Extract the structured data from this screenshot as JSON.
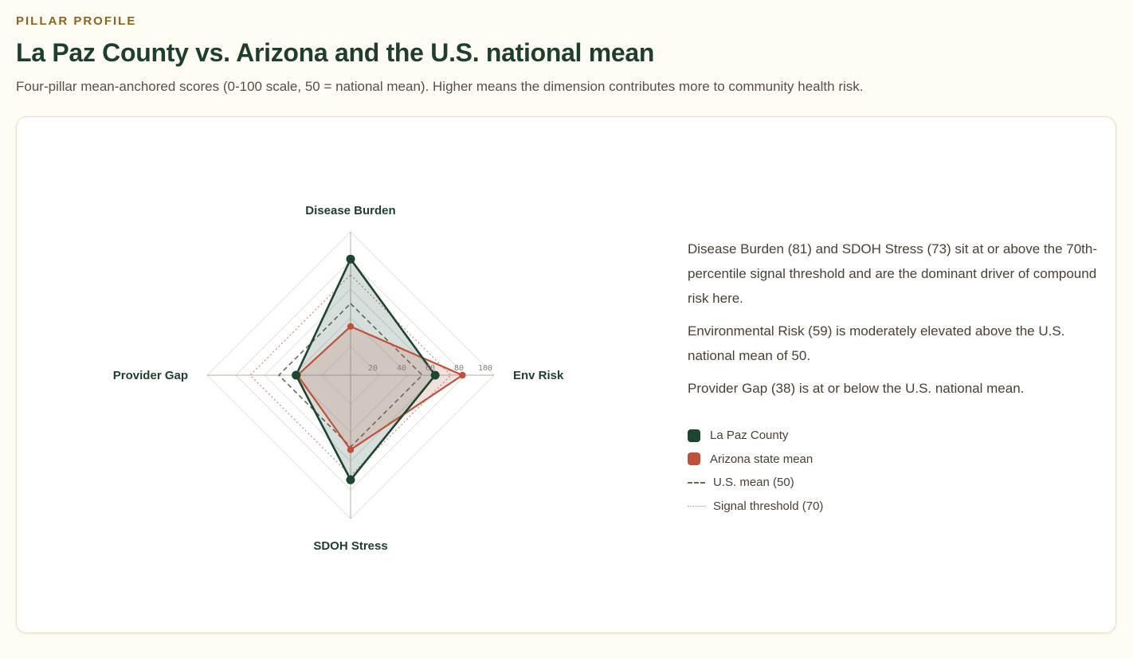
{
  "header": {
    "eyebrow": "PILLAR PROFILE",
    "title": "La Paz County vs. Arizona and the U.S. national mean",
    "subtitle": "Four-pillar mean-anchored scores (0-100 scale, 50 = national mean). Higher means the dimension contributes more to community health risk."
  },
  "chart_data": {
    "type": "radar",
    "axes": [
      "Disease Burden",
      "Env Risk",
      "SDOH Stress",
      "Provider Gap"
    ],
    "range": [
      0,
      100
    ],
    "ticks": [
      "20",
      "40",
      "60",
      "80",
      "100"
    ],
    "series": [
      {
        "name": "La Paz County",
        "values": [
          81,
          59,
          73,
          38
        ],
        "color": "#1e4532"
      },
      {
        "name": "Arizona state mean",
        "values": [
          34,
          78,
          52,
          37
        ],
        "color": "#c0503a"
      }
    ],
    "reference": [
      {
        "name": "U.S. mean (50)",
        "value": 50,
        "color": "#6f665a"
      },
      {
        "name": "Signal threshold (70)",
        "value": 70,
        "color": "#c98a7a"
      }
    ]
  },
  "narrative": [
    "Disease Burden (81) and SDOH Stress (73) sit at or above the 70th-percentile signal threshold and are the dominant driver of compound risk here.",
    "Environmental Risk (59) is moderately elevated above the U.S. national mean of 50.",
    "Provider Gap (38) is at or below the U.S. national mean."
  ],
  "legend": [
    "La Paz County",
    "Arizona state mean",
    "U.S. mean (50)",
    "Signal threshold (70)"
  ]
}
